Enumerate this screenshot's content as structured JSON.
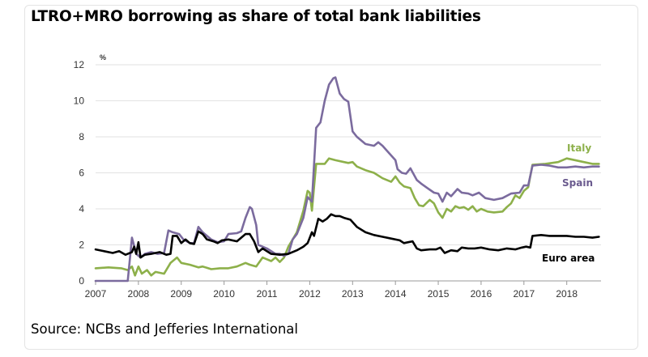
{
  "title": "LTRO+MRO borrowing as share of total bank liabilities",
  "source": "Source: NCBs and Jefferies International",
  "chart_data": {
    "type": "line",
    "ylabel": "%",
    "ylim": [
      0,
      12
    ],
    "xlim": [
      2007,
      2018.8
    ],
    "yticks": [
      "0",
      "2",
      "4",
      "6",
      "8",
      "10",
      "12"
    ],
    "xticks": [
      "2007",
      "2008",
      "2009",
      "2010",
      "2011",
      "2012",
      "2013",
      "2014",
      "2015",
      "2016",
      "2017",
      "2018"
    ],
    "grid": true,
    "series": [
      {
        "name": "Italy",
        "color": "#8db04a",
        "points": [
          [
            2007.0,
            0.7
          ],
          [
            2007.3,
            0.75
          ],
          [
            2007.6,
            0.7
          ],
          [
            2007.75,
            0.6
          ],
          [
            2007.85,
            0.8
          ],
          [
            2007.92,
            0.3
          ],
          [
            2008.0,
            0.8
          ],
          [
            2008.08,
            0.4
          ],
          [
            2008.2,
            0.6
          ],
          [
            2008.3,
            0.3
          ],
          [
            2008.4,
            0.5
          ],
          [
            2008.6,
            0.4
          ],
          [
            2008.75,
            1.0
          ],
          [
            2008.9,
            1.3
          ],
          [
            2009.0,
            1.0
          ],
          [
            2009.2,
            0.9
          ],
          [
            2009.4,
            0.75
          ],
          [
            2009.5,
            0.8
          ],
          [
            2009.7,
            0.65
          ],
          [
            2009.9,
            0.7
          ],
          [
            2010.1,
            0.7
          ],
          [
            2010.3,
            0.8
          ],
          [
            2010.5,
            1.0
          ],
          [
            2010.6,
            0.9
          ],
          [
            2010.75,
            0.8
          ],
          [
            2010.9,
            1.3
          ],
          [
            2011.0,
            1.2
          ],
          [
            2011.1,
            1.1
          ],
          [
            2011.2,
            1.3
          ],
          [
            2011.3,
            1.05
          ],
          [
            2011.4,
            1.3
          ],
          [
            2011.5,
            1.9
          ],
          [
            2011.6,
            2.3
          ],
          [
            2011.7,
            2.7
          ],
          [
            2011.85,
            3.9
          ],
          [
            2011.95,
            5.0
          ],
          [
            2012.0,
            4.9
          ],
          [
            2012.05,
            3.9
          ],
          [
            2012.15,
            6.5
          ],
          [
            2012.35,
            6.5
          ],
          [
            2012.45,
            6.8
          ],
          [
            2012.6,
            6.7
          ],
          [
            2012.8,
            6.6
          ],
          [
            2012.9,
            6.55
          ],
          [
            2013.0,
            6.6
          ],
          [
            2013.1,
            6.35
          ],
          [
            2013.3,
            6.15
          ],
          [
            2013.5,
            6.0
          ],
          [
            2013.7,
            5.7
          ],
          [
            2013.9,
            5.5
          ],
          [
            2014.0,
            5.8
          ],
          [
            2014.1,
            5.45
          ],
          [
            2014.2,
            5.25
          ],
          [
            2014.35,
            5.15
          ],
          [
            2014.45,
            4.6
          ],
          [
            2014.55,
            4.2
          ],
          [
            2014.65,
            4.15
          ],
          [
            2014.8,
            4.5
          ],
          [
            2014.9,
            4.3
          ],
          [
            2015.0,
            3.8
          ],
          [
            2015.1,
            3.5
          ],
          [
            2015.2,
            4.0
          ],
          [
            2015.3,
            3.85
          ],
          [
            2015.4,
            4.15
          ],
          [
            2015.5,
            4.05
          ],
          [
            2015.6,
            4.1
          ],
          [
            2015.7,
            3.95
          ],
          [
            2015.8,
            4.15
          ],
          [
            2015.9,
            3.85
          ],
          [
            2016.0,
            4.0
          ],
          [
            2016.15,
            3.85
          ],
          [
            2016.3,
            3.8
          ],
          [
            2016.5,
            3.85
          ],
          [
            2016.6,
            4.1
          ],
          [
            2016.7,
            4.3
          ],
          [
            2016.8,
            4.75
          ],
          [
            2016.9,
            4.6
          ],
          [
            2017.0,
            5.0
          ],
          [
            2017.1,
            5.2
          ],
          [
            2017.2,
            6.45
          ],
          [
            2017.5,
            6.5
          ],
          [
            2017.8,
            6.6
          ],
          [
            2018.0,
            6.8
          ],
          [
            2018.1,
            6.75
          ],
          [
            2018.4,
            6.6
          ],
          [
            2018.6,
            6.5
          ],
          [
            2018.75,
            6.5
          ]
        ]
      },
      {
        "name": "Spain",
        "color": "#7b6b9e",
        "points": [
          [
            2007.0,
            0.0
          ],
          [
            2007.75,
            0.0
          ],
          [
            2007.85,
            2.4
          ],
          [
            2007.95,
            1.5
          ],
          [
            2008.05,
            1.3
          ],
          [
            2008.15,
            1.5
          ],
          [
            2008.3,
            1.6
          ],
          [
            2008.45,
            1.5
          ],
          [
            2008.6,
            1.55
          ],
          [
            2008.7,
            2.8
          ],
          [
            2008.8,
            2.7
          ],
          [
            2008.95,
            2.6
          ],
          [
            2009.05,
            2.3
          ],
          [
            2009.2,
            2.1
          ],
          [
            2009.3,
            2.1
          ],
          [
            2009.4,
            3.0
          ],
          [
            2009.5,
            2.7
          ],
          [
            2009.6,
            2.5
          ],
          [
            2009.7,
            2.3
          ],
          [
            2009.85,
            2.15
          ],
          [
            2010.0,
            2.2
          ],
          [
            2010.1,
            2.6
          ],
          [
            2010.3,
            2.65
          ],
          [
            2010.4,
            2.75
          ],
          [
            2010.5,
            3.5
          ],
          [
            2010.6,
            4.1
          ],
          [
            2010.65,
            4.0
          ],
          [
            2010.75,
            3.1
          ],
          [
            2010.8,
            2.0
          ],
          [
            2010.9,
            1.9
          ],
          [
            2011.0,
            1.8
          ],
          [
            2011.2,
            1.5
          ],
          [
            2011.3,
            1.5
          ],
          [
            2011.4,
            1.4
          ],
          [
            2011.5,
            1.5
          ],
          [
            2011.6,
            2.3
          ],
          [
            2011.7,
            2.6
          ],
          [
            2011.85,
            3.5
          ],
          [
            2011.95,
            4.65
          ],
          [
            2012.05,
            4.4
          ],
          [
            2012.15,
            8.5
          ],
          [
            2012.25,
            8.8
          ],
          [
            2012.35,
            10.0
          ],
          [
            2012.45,
            10.9
          ],
          [
            2012.55,
            11.25
          ],
          [
            2012.6,
            11.3
          ],
          [
            2012.7,
            10.4
          ],
          [
            2012.8,
            10.1
          ],
          [
            2012.9,
            9.95
          ],
          [
            2013.0,
            8.3
          ],
          [
            2013.1,
            8.0
          ],
          [
            2013.3,
            7.6
          ],
          [
            2013.5,
            7.5
          ],
          [
            2013.6,
            7.7
          ],
          [
            2013.7,
            7.5
          ],
          [
            2013.85,
            7.1
          ],
          [
            2014.0,
            6.7
          ],
          [
            2014.05,
            6.2
          ],
          [
            2014.15,
            6.0
          ],
          [
            2014.25,
            5.95
          ],
          [
            2014.35,
            6.25
          ],
          [
            2014.5,
            5.6
          ],
          [
            2014.6,
            5.4
          ],
          [
            2014.75,
            5.15
          ],
          [
            2014.9,
            4.9
          ],
          [
            2015.0,
            4.85
          ],
          [
            2015.1,
            4.4
          ],
          [
            2015.2,
            4.9
          ],
          [
            2015.3,
            4.7
          ],
          [
            2015.45,
            5.1
          ],
          [
            2015.55,
            4.9
          ],
          [
            2015.7,
            4.85
          ],
          [
            2015.8,
            4.75
          ],
          [
            2015.95,
            4.9
          ],
          [
            2016.1,
            4.6
          ],
          [
            2016.3,
            4.5
          ],
          [
            2016.5,
            4.6
          ],
          [
            2016.7,
            4.85
          ],
          [
            2016.9,
            4.9
          ],
          [
            2017.0,
            5.3
          ],
          [
            2017.1,
            5.3
          ],
          [
            2017.2,
            6.4
          ],
          [
            2017.4,
            6.45
          ],
          [
            2017.6,
            6.4
          ],
          [
            2017.8,
            6.3
          ],
          [
            2018.0,
            6.3
          ],
          [
            2018.2,
            6.35
          ],
          [
            2018.4,
            6.3
          ],
          [
            2018.6,
            6.35
          ],
          [
            2018.75,
            6.35
          ]
        ]
      },
      {
        "name": "Euro area",
        "color": "#000000",
        "points": [
          [
            2007.0,
            1.75
          ],
          [
            2007.2,
            1.65
          ],
          [
            2007.4,
            1.55
          ],
          [
            2007.55,
            1.65
          ],
          [
            2007.7,
            1.45
          ],
          [
            2007.85,
            1.6
          ],
          [
            2007.9,
            1.9
          ],
          [
            2007.95,
            1.5
          ],
          [
            2008.0,
            2.15
          ],
          [
            2008.05,
            1.3
          ],
          [
            2008.15,
            1.45
          ],
          [
            2008.3,
            1.5
          ],
          [
            2008.5,
            1.6
          ],
          [
            2008.65,
            1.45
          ],
          [
            2008.75,
            1.5
          ],
          [
            2008.8,
            2.5
          ],
          [
            2008.9,
            2.5
          ],
          [
            2009.0,
            2.1
          ],
          [
            2009.1,
            2.3
          ],
          [
            2009.2,
            2.1
          ],
          [
            2009.3,
            2.05
          ],
          [
            2009.4,
            2.75
          ],
          [
            2009.5,
            2.6
          ],
          [
            2009.6,
            2.3
          ],
          [
            2009.75,
            2.2
          ],
          [
            2009.85,
            2.1
          ],
          [
            2009.95,
            2.25
          ],
          [
            2010.1,
            2.3
          ],
          [
            2010.3,
            2.2
          ],
          [
            2010.5,
            2.6
          ],
          [
            2010.6,
            2.6
          ],
          [
            2010.7,
            2.2
          ],
          [
            2010.8,
            1.6
          ],
          [
            2010.9,
            1.8
          ],
          [
            2011.1,
            1.5
          ],
          [
            2011.3,
            1.45
          ],
          [
            2011.5,
            1.5
          ],
          [
            2011.7,
            1.7
          ],
          [
            2011.85,
            1.9
          ],
          [
            2011.95,
            2.1
          ],
          [
            2012.05,
            2.7
          ],
          [
            2012.1,
            2.5
          ],
          [
            2012.2,
            3.45
          ],
          [
            2012.3,
            3.3
          ],
          [
            2012.4,
            3.45
          ],
          [
            2012.5,
            3.7
          ],
          [
            2012.6,
            3.6
          ],
          [
            2012.7,
            3.6
          ],
          [
            2012.8,
            3.5
          ],
          [
            2012.95,
            3.4
          ],
          [
            2013.1,
            3.0
          ],
          [
            2013.3,
            2.7
          ],
          [
            2013.5,
            2.55
          ],
          [
            2013.7,
            2.45
          ],
          [
            2013.9,
            2.35
          ],
          [
            2014.1,
            2.25
          ],
          [
            2014.2,
            2.1
          ],
          [
            2014.3,
            2.15
          ],
          [
            2014.4,
            2.2
          ],
          [
            2014.5,
            1.8
          ],
          [
            2014.6,
            1.7
          ],
          [
            2014.8,
            1.75
          ],
          [
            2014.95,
            1.75
          ],
          [
            2015.05,
            1.85
          ],
          [
            2015.15,
            1.55
          ],
          [
            2015.3,
            1.7
          ],
          [
            2015.45,
            1.65
          ],
          [
            2015.55,
            1.85
          ],
          [
            2015.7,
            1.8
          ],
          [
            2015.85,
            1.8
          ],
          [
            2016.0,
            1.85
          ],
          [
            2016.2,
            1.75
          ],
          [
            2016.4,
            1.7
          ],
          [
            2016.6,
            1.8
          ],
          [
            2016.8,
            1.75
          ],
          [
            2016.95,
            1.85
          ],
          [
            2017.05,
            1.9
          ],
          [
            2017.15,
            1.85
          ],
          [
            2017.2,
            2.5
          ],
          [
            2017.4,
            2.55
          ],
          [
            2017.6,
            2.5
          ],
          [
            2017.8,
            2.5
          ],
          [
            2018.0,
            2.5
          ],
          [
            2018.2,
            2.45
          ],
          [
            2018.4,
            2.45
          ],
          [
            2018.6,
            2.4
          ],
          [
            2018.75,
            2.45
          ]
        ]
      }
    ],
    "series_labels": [
      {
        "text": "Italy",
        "color": "#8db04a"
      },
      {
        "text": "Spain",
        "color": "#6a5a8e"
      },
      {
        "text": "Euro area",
        "color": "#000000"
      }
    ]
  }
}
